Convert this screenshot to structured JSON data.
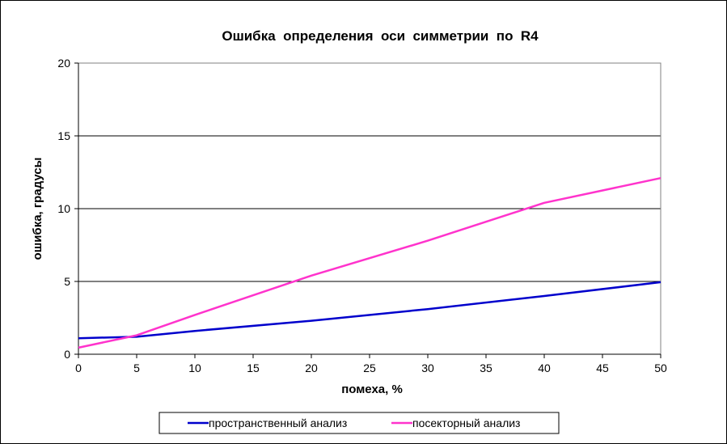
{
  "chart_data": {
    "type": "line",
    "title": "Ошибка  определения  оси  симметрии  по  R4",
    "xlabel": "помеха, %",
    "ylabel": "ошибка, градусы",
    "xlim": [
      0,
      50
    ],
    "ylim": [
      0,
      20
    ],
    "x_ticks": [
      0,
      5,
      10,
      15,
      20,
      25,
      30,
      35,
      40,
      45,
      50
    ],
    "y_ticks": [
      0,
      5,
      10,
      15,
      20
    ],
    "grid": "horizontal",
    "legend_position": "bottom",
    "series": [
      {
        "name": "пространственный анализ",
        "color": "#0000cc",
        "x": [
          0,
          5,
          10,
          20,
          30,
          40,
          50
        ],
        "y": [
          1.1,
          1.2,
          1.6,
          2.3,
          3.1,
          4.0,
          4.95
        ]
      },
      {
        "name": "посекторный анализ",
        "color": "#ff33cc",
        "x": [
          0,
          5,
          10,
          20,
          30,
          40,
          50
        ],
        "y": [
          0.45,
          1.3,
          2.7,
          5.4,
          7.8,
          10.4,
          12.1
        ]
      }
    ]
  }
}
